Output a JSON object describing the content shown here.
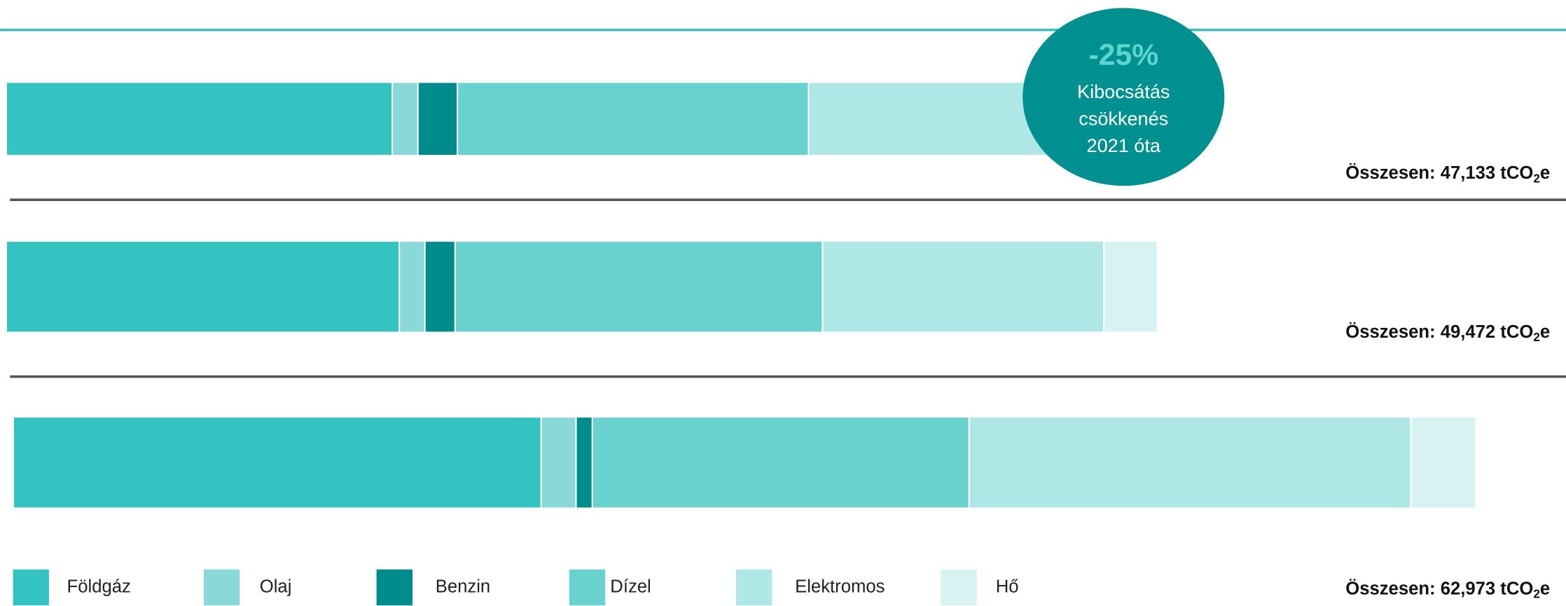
{
  "chart_data": {
    "type": "bar",
    "orientation": "horizontal",
    "stacked": true,
    "categories": [
      null,
      null,
      null
    ],
    "series": [
      {
        "name": "Földgáz",
        "color": "#34c3c0",
        "values": [
          16600,
          16900,
          22700
        ]
      },
      {
        "name": "Olaj",
        "color": "#88d9d7",
        "values": [
          1100,
          1100,
          1500
        ]
      },
      {
        "name": "Benzin",
        "color": "#008b8c",
        "values": [
          1700,
          1300,
          700
        ]
      },
      {
        "name": "Dízel",
        "color": "#69d2cf",
        "values": [
          15100,
          15800,
          16200
        ]
      },
      {
        "name": "Elektromos",
        "color": "#aee7e5",
        "values": [
          11100,
          12100,
          19000
        ]
      },
      {
        "name": "Hő",
        "color": "#d6f2f1",
        "values": [
          1600,
          2300,
          2800
        ]
      }
    ],
    "total_labels": [
      {
        "text": "Összesen: 47,133 tCO",
        "sub": "2",
        "end": "e"
      },
      {
        "text": "Összesen: 49,472 tCO",
        "sub": "2",
        "end": "e"
      },
      {
        "text": "Összesen: 62,973 tCO",
        "sub": "2",
        "end": "e"
      }
    ],
    "annotation": {
      "value": "-25%",
      "lines": [
        "Kibocsátás",
        "csökkenés",
        "2021 óta"
      ],
      "color": "#009090"
    }
  }
}
